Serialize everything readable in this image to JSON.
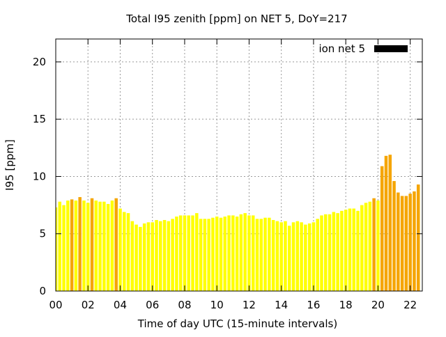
{
  "chart_data": {
    "type": "bar",
    "title": "Total I95 zenith [ppm] on NET 5, DoY=217",
    "xlabel": "Time of day UTC (15-minute intervals)",
    "ylabel": "I95 [ppm]",
    "xlim": [
      0,
      22.75
    ],
    "ylim": [
      0,
      22
    ],
    "xticks": [
      "00",
      "02",
      "04",
      "06",
      "08",
      "10",
      "12",
      "14",
      "16",
      "18",
      "20",
      "22"
    ],
    "xtick_values": [
      0,
      2,
      4,
      6,
      8,
      10,
      12,
      14,
      16,
      18,
      20,
      22
    ],
    "yticks": [
      "0",
      "5",
      "10",
      "15",
      "20"
    ],
    "ytick_values": [
      0,
      5,
      10,
      15,
      20
    ],
    "grid": true,
    "legend_position": "top-right",
    "series": [
      {
        "name": "ion net 5",
        "color": "#000000",
        "bar_colors": {
          "normal": "#ffff00",
          "elevated": "#f5a500"
        },
        "elevated_threshold": 8.0,
        "x_step": 0.25,
        "values": [
          7.3,
          7.8,
          7.5,
          7.9,
          8.0,
          7.9,
          8.2,
          7.9,
          7.7,
          8.1,
          7.9,
          7.8,
          7.8,
          7.6,
          7.9,
          8.1,
          7.2,
          6.9,
          6.8,
          6.1,
          5.8,
          5.6,
          5.9,
          6.0,
          6.0,
          6.2,
          6.1,
          6.2,
          6.1,
          6.3,
          6.5,
          6.6,
          6.6,
          6.6,
          6.6,
          6.8,
          6.3,
          6.3,
          6.3,
          6.4,
          6.5,
          6.4,
          6.5,
          6.6,
          6.6,
          6.5,
          6.7,
          6.8,
          6.6,
          6.6,
          6.3,
          6.3,
          6.4,
          6.4,
          6.2,
          6.1,
          6.0,
          6.1,
          5.7,
          6.0,
          6.1,
          6.0,
          5.8,
          5.9,
          6.0,
          6.3,
          6.6,
          6.7,
          6.7,
          6.9,
          6.8,
          7.0,
          7.1,
          7.2,
          7.2,
          7.0,
          7.5,
          7.7,
          7.8,
          8.1,
          7.9,
          10.9,
          11.8,
          11.9,
          9.6,
          8.6,
          8.3,
          8.3,
          8.5,
          8.7,
          9.3
        ]
      }
    ]
  }
}
